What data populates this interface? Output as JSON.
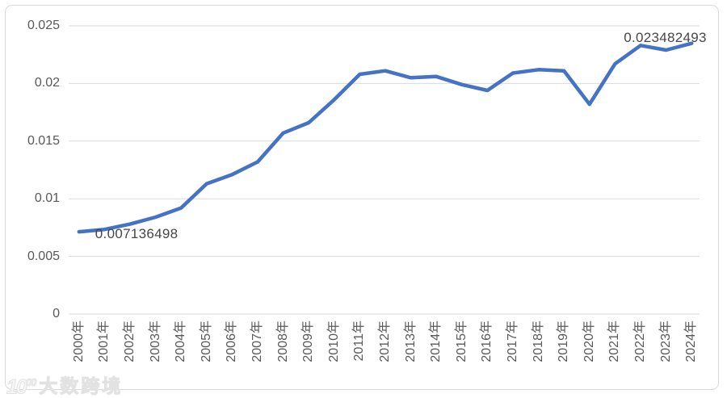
{
  "watermark": {
    "logo_icon": "big-data-cross-border-logo",
    "mark": "10",
    "mark_sup": "00",
    "text": "大数跨境"
  },
  "chart_data": {
    "type": "line",
    "title": "",
    "xlabel": "",
    "ylabel": "",
    "categories": [
      "2000年",
      "2001年",
      "2002年",
      "2003年",
      "2004年",
      "2005年",
      "2006年",
      "2007年",
      "2008年",
      "2009年",
      "2010年",
      "2011年",
      "2012年",
      "2013年",
      "2014年",
      "2015年",
      "2016年",
      "2017年",
      "2018年",
      "2019年",
      "2020年",
      "2021年",
      "2022年",
      "2023年",
      "2024年"
    ],
    "values": [
      0.007136498,
      0.00734,
      0.0078,
      0.0084,
      0.0092,
      0.0113,
      0.0121,
      0.0132,
      0.0157,
      0.0166,
      0.0186,
      0.0208,
      0.0211,
      0.0205,
      0.0206,
      0.0199,
      0.0194,
      0.0209,
      0.0212,
      0.0211,
      0.0182,
      0.0217,
      0.0233,
      0.0229,
      0.023482493
    ],
    "ylim": [
      0,
      0.025
    ],
    "ytick_labels": [
      "0",
      "0.005",
      "0.01",
      "0.015",
      "0.02",
      "0.025"
    ],
    "grid": true,
    "legend": "none",
    "line_color": "#4472C4",
    "grid_color": "#d9d9d9",
    "tick_color": "#595959",
    "point_labels": [
      {
        "index": 0,
        "text": "0.007136498",
        "placement": "below-right"
      },
      {
        "index": 24,
        "text": "0.023482493",
        "placement": "above-left"
      }
    ]
  }
}
